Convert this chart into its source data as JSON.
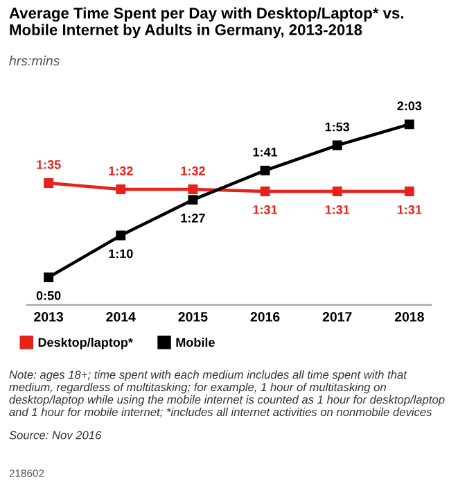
{
  "chart_data": {
    "type": "line",
    "title": "Average Time Spent per Day with Desktop/Laptop* vs. Mobile Internet by Adults in Germany, 2013-2018",
    "subtitle": "hrs:mins",
    "categories": [
      "2013",
      "2014",
      "2015",
      "2016",
      "2017",
      "2018"
    ],
    "series": [
      {
        "name": "Desktop/laptop*",
        "color": "#e8211a",
        "values": [
          95,
          92,
          92,
          91,
          91,
          91
        ],
        "value_labels": [
          "1:35",
          "1:32",
          "1:32",
          "1:31",
          "1:31",
          "1:31"
        ]
      },
      {
        "name": "Mobile",
        "color": "#000000",
        "values": [
          50,
          70,
          87,
          101,
          113,
          123
        ],
        "value_labels": [
          "0:50",
          "1:10",
          "1:27",
          "1:41",
          "1:53",
          "2:03"
        ]
      }
    ],
    "marker": "square",
    "line_style": "solid",
    "grid": false,
    "legend": "bottom left",
    "annotations": [
      "Note: ages 18+; time spent with each medium includes all time spent with that medium, regardless of multitasking; for example, 1 hour of multitasking on desktop/laptop while using the mobile internet is counted as 1 hour for desktop/laptop and 1 hour for mobile internet; *includes all internet activities on nonmobile devices",
      "Source: Nov 2016",
      "218602"
    ]
  }
}
